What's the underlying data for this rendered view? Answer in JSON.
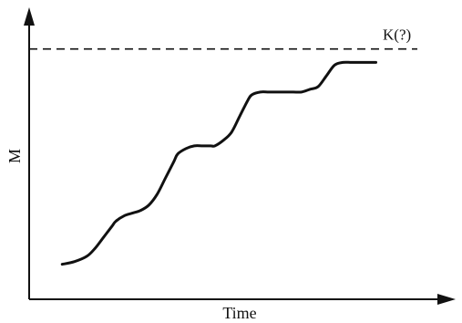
{
  "chart_data": {
    "type": "line",
    "title": "",
    "xlabel": "Time",
    "ylabel": "M",
    "xlim": [
      0,
      100
    ],
    "ylim": [
      0,
      100
    ],
    "grid": false,
    "legend": "none",
    "colors": {
      "axis": "#111111",
      "series": "#111111",
      "reference": "#111111"
    },
    "reference_line": {
      "label": "K(?)",
      "y": 93,
      "style": "dashed"
    },
    "series": [
      {
        "x": [
          8,
          11,
          14,
          16,
          18,
          20,
          21,
          23,
          25,
          27,
          29,
          31,
          33,
          35,
          36,
          38,
          40,
          42,
          44,
          45,
          47,
          49,
          51,
          53,
          54,
          56,
          58,
          60,
          62,
          64,
          66,
          68,
          70,
          72,
          74,
          76,
          78,
          80,
          82,
          84
        ],
        "y": [
          13,
          14,
          16,
          19,
          23,
          27,
          29,
          31,
          32,
          33,
          35,
          39,
          45,
          51,
          54,
          56,
          57,
          57,
          57,
          57,
          59,
          62,
          68,
          74,
          76,
          77,
          77,
          77,
          77,
          77,
          77,
          78,
          79,
          83,
          87,
          88,
          88,
          88,
          88,
          88
        ]
      }
    ]
  }
}
